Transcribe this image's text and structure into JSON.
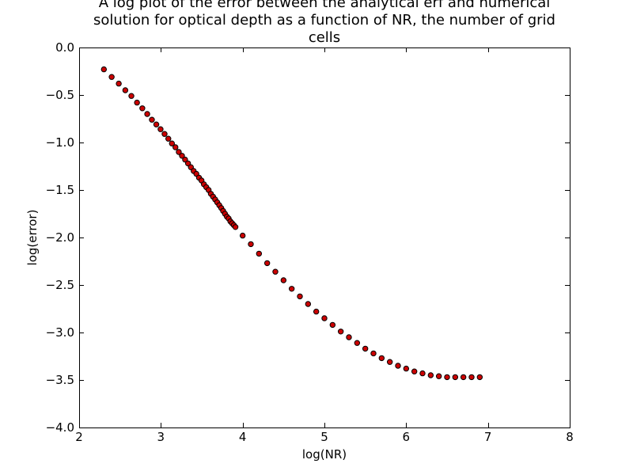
{
  "chart_data": {
    "type": "scatter",
    "title_lines": [
      "A log plot of the error between the analytical erf and numerical",
      "solution for optical depth as a function of NR, the number of grid",
      "cells"
    ],
    "xlabel": "log(NR)",
    "ylabel": "log(error)",
    "xlim": [
      2,
      8
    ],
    "ylim": [
      -4.0,
      0.0
    ],
    "xticks": [
      2,
      3,
      4,
      5,
      6,
      7,
      8
    ],
    "xtick_labels": [
      "2",
      "3",
      "4",
      "5",
      "6",
      "7",
      "8"
    ],
    "yticks": [
      0.0,
      -0.5,
      -1.0,
      -1.5,
      -2.0,
      -2.5,
      -3.0,
      -3.5,
      -4.0
    ],
    "ytick_labels": [
      "0.0",
      "−0.5",
      "−1.0",
      "−1.5",
      "−2.0",
      "−2.5",
      "−3.0",
      "−3.5",
      "−4.0"
    ],
    "grid": false,
    "marker_color": "#cc0000",
    "marker_edge_color": "#000000",
    "series": [
      {
        "x": [
          2.303,
          2.398,
          2.485,
          2.565,
          2.639,
          2.708,
          2.773,
          2.833,
          2.89,
          2.944,
          2.996,
          3.045,
          3.091,
          3.135,
          3.178,
          3.219,
          3.258,
          3.296,
          3.332,
          3.367,
          3.401,
          3.434,
          3.466,
          3.497,
          3.526,
          3.555,
          3.584,
          3.611,
          3.638,
          3.664,
          3.689,
          3.714,
          3.738,
          3.761,
          3.784,
          3.807,
          3.829,
          3.85,
          3.871,
          3.892,
          3.912,
          4.0,
          4.1,
          4.2,
          4.3,
          4.4,
          4.5,
          4.6,
          4.7,
          4.8,
          4.9,
          5.0,
          5.1,
          5.2,
          5.3,
          5.4,
          5.5,
          5.6,
          5.7,
          5.8,
          5.9,
          6.0,
          6.1,
          6.2,
          6.3,
          6.4,
          6.5,
          6.6,
          6.7,
          6.8,
          6.9
        ],
        "y": [
          -0.23,
          -0.31,
          -0.38,
          -0.45,
          -0.51,
          -0.58,
          -0.64,
          -0.7,
          -0.76,
          -0.81,
          -0.86,
          -0.91,
          -0.96,
          -1.01,
          -1.05,
          -1.1,
          -1.14,
          -1.18,
          -1.22,
          -1.26,
          -1.3,
          -1.33,
          -1.37,
          -1.4,
          -1.44,
          -1.47,
          -1.5,
          -1.54,
          -1.57,
          -1.6,
          -1.63,
          -1.66,
          -1.69,
          -1.72,
          -1.75,
          -1.78,
          -1.8,
          -1.83,
          -1.85,
          -1.87,
          -1.89,
          -1.98,
          -2.07,
          -2.17,
          -2.27,
          -2.36,
          -2.45,
          -2.54,
          -2.62,
          -2.7,
          -2.78,
          -2.85,
          -2.92,
          -2.99,
          -3.05,
          -3.11,
          -3.17,
          -3.22,
          -3.27,
          -3.31,
          -3.35,
          -3.38,
          -3.41,
          -3.43,
          -3.45,
          -3.46,
          -3.47,
          -3.47,
          -3.47,
          -3.47,
          -3.47
        ]
      }
    ]
  }
}
